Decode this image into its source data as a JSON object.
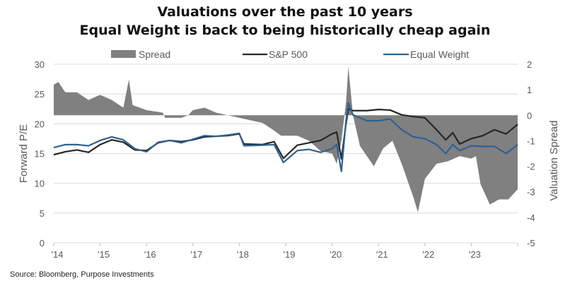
{
  "chart_data": {
    "type": "line",
    "title": "Valuations over the past 10 years",
    "subtitle": "Equal Weight is back to being historically cheap again",
    "ylabel": "Forward P/E",
    "y2label": "Valuation Spread",
    "ylim": [
      0,
      30
    ],
    "y_ticks": [
      "0",
      "5",
      "10",
      "15",
      "20",
      "25",
      "30"
    ],
    "y2lim": [
      -5,
      2
    ],
    "y2_ticks": [
      "-5",
      "-4",
      "-3",
      "-2",
      "-1",
      "0",
      "1",
      "2"
    ],
    "xlim": [
      2014,
      2024
    ],
    "x_ticks": [
      "'14",
      "'15",
      "'16",
      "'17",
      "'18",
      "'19",
      "'20",
      "'21",
      "'22",
      "'23"
    ],
    "grid": true,
    "legend_position": "top",
    "legend": [
      "Spread",
      "S&P 500",
      "Equal Weight"
    ],
    "colors": {
      "spread": "#808080",
      "sp500": "#262626",
      "equal_weight": "#2e6194"
    },
    "series": [
      {
        "name": "Spread",
        "type": "area",
        "axis": "right",
        "x": [
          2014.0,
          2014.1,
          2014.25,
          2014.5,
          2014.75,
          2015.0,
          2015.25,
          2015.5,
          2015.62,
          2015.7,
          2016.0,
          2016.35,
          2016.4,
          2016.75,
          2016.9,
          2017.0,
          2017.25,
          2017.5,
          2017.75,
          2018.0,
          2018.5,
          2018.75,
          2018.9,
          2019.25,
          2019.5,
          2019.75,
          2020.0,
          2020.1,
          2020.2,
          2020.3,
          2020.35,
          2020.45,
          2020.6,
          2020.9,
          2021.1,
          2021.3,
          2021.5,
          2021.75,
          2021.85,
          2022.0,
          2022.25,
          2022.5,
          2022.75,
          2023.0,
          2023.1,
          2023.2,
          2023.4,
          2023.6,
          2023.8,
          2024.0
        ],
        "values": [
          1.2,
          1.3,
          0.9,
          0.9,
          0.6,
          0.8,
          0.6,
          0.3,
          1.4,
          0.4,
          0.2,
          0.1,
          -0.1,
          -0.1,
          0.0,
          0.2,
          0.3,
          0.1,
          0.0,
          -0.1,
          -0.3,
          -0.6,
          -0.8,
          -0.8,
          -1.0,
          -1.4,
          -1.5,
          -1.9,
          -1.0,
          0.5,
          1.9,
          0.0,
          -1.2,
          -2.0,
          -1.3,
          -1.0,
          -1.9,
          -3.2,
          -3.8,
          -2.5,
          -1.9,
          -1.8,
          -1.6,
          -1.7,
          -1.6,
          -2.7,
          -3.5,
          -3.3,
          -3.3,
          -2.9
        ]
      },
      {
        "name": "S&P 500",
        "type": "line",
        "axis": "left",
        "x": [
          2014.0,
          2014.25,
          2014.5,
          2014.75,
          2015.0,
          2015.25,
          2015.5,
          2015.75,
          2016.0,
          2016.25,
          2016.5,
          2016.75,
          2017.0,
          2017.25,
          2017.5,
          2017.75,
          2018.0,
          2018.1,
          2018.5,
          2018.75,
          2018.95,
          2019.25,
          2019.5,
          2019.75,
          2020.0,
          2020.1,
          2020.2,
          2020.3,
          2020.35,
          2020.45,
          2020.75,
          2021.0,
          2021.25,
          2021.5,
          2021.75,
          2022.0,
          2022.25,
          2022.45,
          2022.6,
          2022.75,
          2023.0,
          2023.25,
          2023.5,
          2023.75,
          2024.0
        ],
        "values": [
          14.8,
          15.3,
          15.6,
          15.2,
          16.5,
          17.3,
          16.9,
          15.6,
          15.5,
          16.8,
          17.2,
          17.0,
          17.3,
          17.8,
          17.9,
          18.0,
          18.3,
          16.6,
          16.5,
          17.0,
          14.2,
          16.4,
          16.8,
          17.2,
          18.3,
          18.6,
          14.1,
          20.0,
          22.5,
          22.2,
          22.2,
          22.4,
          22.3,
          21.5,
          21.2,
          21.0,
          19.0,
          17.3,
          18.5,
          16.6,
          17.5,
          18.0,
          19.0,
          18.3,
          19.9
        ]
      },
      {
        "name": "Equal Weight",
        "type": "line",
        "axis": "left",
        "x": [
          2014.0,
          2014.25,
          2014.5,
          2014.75,
          2015.0,
          2015.25,
          2015.5,
          2015.75,
          2016.0,
          2016.25,
          2016.5,
          2016.75,
          2017.0,
          2017.25,
          2017.5,
          2017.75,
          2018.0,
          2018.1,
          2018.5,
          2018.75,
          2018.95,
          2019.25,
          2019.5,
          2019.75,
          2020.0,
          2020.1,
          2020.2,
          2020.3,
          2020.35,
          2020.45,
          2020.75,
          2021.0,
          2021.25,
          2021.5,
          2021.75,
          2022.0,
          2022.25,
          2022.45,
          2022.6,
          2022.75,
          2023.0,
          2023.25,
          2023.5,
          2023.75,
          2024.0
        ],
        "values": [
          16.0,
          16.5,
          16.5,
          16.3,
          17.2,
          17.8,
          17.3,
          15.8,
          15.3,
          16.9,
          17.2,
          16.8,
          17.4,
          18.0,
          17.9,
          18.1,
          18.4,
          16.3,
          16.4,
          16.5,
          13.5,
          15.5,
          15.7,
          15.2,
          15.8,
          16.5,
          12.0,
          20.5,
          23.5,
          21.5,
          20.5,
          20.5,
          20.8,
          19.0,
          17.8,
          17.5,
          16.5,
          15.0,
          16.5,
          15.5,
          16.3,
          16.2,
          16.2,
          15.0,
          16.5
        ]
      }
    ]
  },
  "source": "Source: Bloomberg, Purpose Investments"
}
